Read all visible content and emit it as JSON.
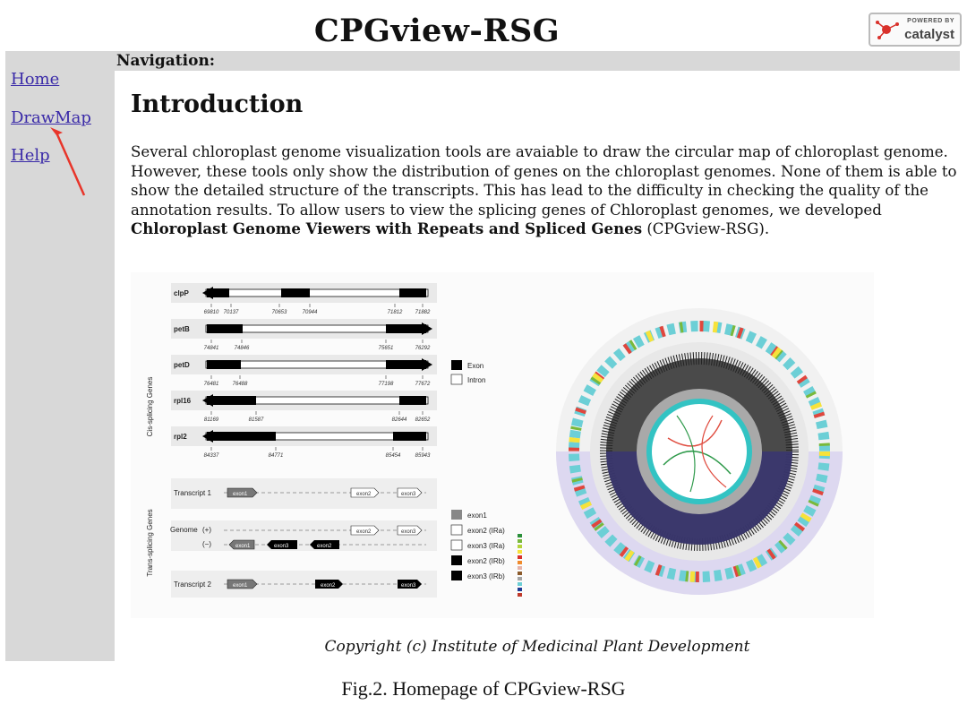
{
  "header": {
    "title": "CPGview-RSG",
    "badge_top": "POWERED BY",
    "badge_name": "catalyst"
  },
  "nav": {
    "heading": "Navigation:"
  },
  "sidebar": {
    "items": [
      {
        "label": "Home"
      },
      {
        "label": "DrawMap"
      },
      {
        "label": "Help"
      }
    ]
  },
  "main": {
    "heading": "Introduction",
    "paragraph_text": "Several chloroplast genome visualization tools are avaiable to draw the circular map of chloroplast genome. However, these tools only show the distribution of genes on the chloroplast genomes. None of them is able to show the detailed structure of the transcripts. This has lead to the difficulty in checking the quality of the annotation results. To allow users to view the splicing genes of Chloroplast genomes, we developed ",
    "paragraph_bold": "Chloroplast Genome Viewers with Repeats and Spliced Genes",
    "paragraph_end": " (CPGview-RSG)."
  },
  "figure": {
    "cis_label": "Cis-splicing Genes",
    "trans_label": "Trans-splicing Genes",
    "cis_genes": [
      {
        "name": "clpP",
        "ticks": [
          "69810",
          "70137",
          "70653",
          "70944",
          "71812",
          "71882"
        ]
      },
      {
        "name": "petB",
        "ticks": [
          "74841",
          "74846",
          "75651",
          "76292"
        ]
      },
      {
        "name": "petD",
        "ticks": [
          "76481",
          "76488",
          "77198",
          "77672"
        ]
      },
      {
        "name": "rpl16",
        "ticks": [
          "81169",
          "81587",
          "82644",
          "82652"
        ]
      },
      {
        "name": "rpl2",
        "ticks": [
          "84337",
          "84771",
          "85454",
          "85943"
        ]
      }
    ],
    "cis_legend": [
      "Exon",
      "Intron"
    ],
    "trans_rows": {
      "t1": "Transcript 1",
      "genome": "Genome",
      "plus": "(+)",
      "minus": "(−)",
      "t2": "Transcript 2"
    },
    "exon_labels": {
      "e1": "exon1",
      "e2": "exon2",
      "e3": "exon3"
    },
    "trans_legend": [
      "exon1",
      "exon2 (IRa)",
      "exon3 (IRa)",
      "exon2 (IRb)",
      "exon3 (IRb)"
    ]
  },
  "footer": {
    "copyright": "Copyright (c) Institute of Medicinal Plant Development"
  },
  "caption": "Fig.2. Homepage of CPGview-RSG",
  "colors": {
    "link": "#3a2aa8",
    "sidebar_bg": "#d8d8d8",
    "arrow": "#e8352a"
  }
}
